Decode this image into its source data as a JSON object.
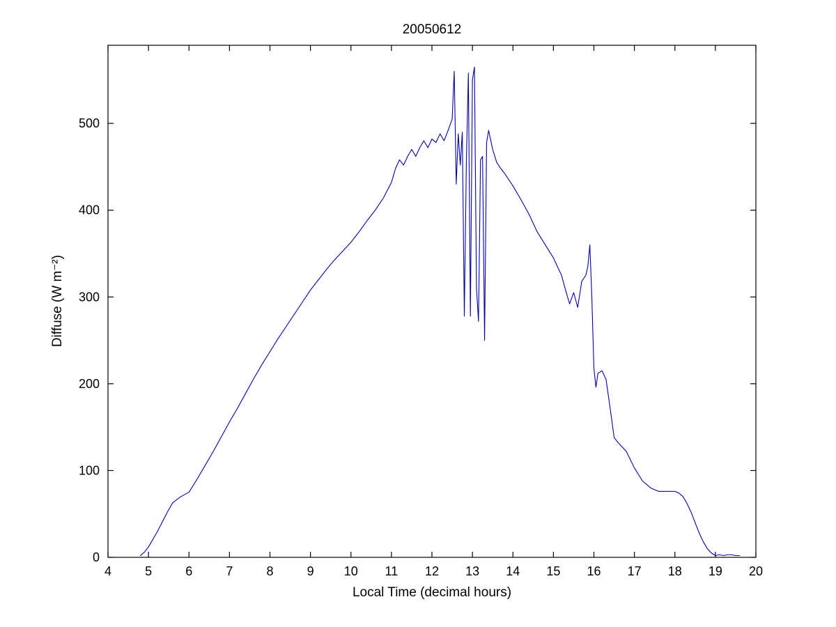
{
  "figure": {
    "title": "20050612",
    "xlabel": "Local Time (decimal hours)",
    "ylabel": "Diffuse (W m⁻²)"
  },
  "chart_data": {
    "type": "line",
    "title": "20050612",
    "xlabel": "Local Time (decimal hours)",
    "ylabel": "Diffuse (W m^-2)",
    "xlim": [
      4,
      20
    ],
    "ylim": [
      0,
      590
    ],
    "xticks": [
      4,
      5,
      6,
      7,
      8,
      9,
      10,
      11,
      12,
      13,
      14,
      15,
      16,
      17,
      18,
      19,
      20
    ],
    "yticks": [
      0,
      100,
      200,
      300,
      400,
      500
    ],
    "grid": false,
    "legend": "none",
    "line_color": "#0000AA",
    "axis_color": "#000000",
    "series": [
      {
        "name": "diffuse",
        "points": [
          [
            4.8,
            2
          ],
          [
            4.9,
            6
          ],
          [
            5.0,
            12
          ],
          [
            5.1,
            20
          ],
          [
            5.2,
            28
          ],
          [
            5.3,
            37
          ],
          [
            5.4,
            46
          ],
          [
            5.5,
            55
          ],
          [
            5.6,
            63
          ],
          [
            5.8,
            70
          ],
          [
            6.0,
            75
          ],
          [
            6.2,
            90
          ],
          [
            6.4,
            106
          ],
          [
            6.6,
            122
          ],
          [
            6.8,
            139
          ],
          [
            7.0,
            156
          ],
          [
            7.2,
            172
          ],
          [
            7.4,
            189
          ],
          [
            7.6,
            206
          ],
          [
            7.8,
            222
          ],
          [
            8.0,
            237
          ],
          [
            8.2,
            252
          ],
          [
            8.4,
            266
          ],
          [
            8.6,
            280
          ],
          [
            8.8,
            294
          ],
          [
            9.0,
            308
          ],
          [
            9.2,
            320
          ],
          [
            9.4,
            332
          ],
          [
            9.6,
            343
          ],
          [
            9.8,
            353
          ],
          [
            10.0,
            363
          ],
          [
            10.2,
            375
          ],
          [
            10.4,
            388
          ],
          [
            10.6,
            400
          ],
          [
            10.8,
            414
          ],
          [
            11.0,
            432
          ],
          [
            11.1,
            448
          ],
          [
            11.2,
            458
          ],
          [
            11.3,
            452
          ],
          [
            11.4,
            462
          ],
          [
            11.5,
            470
          ],
          [
            11.6,
            462
          ],
          [
            11.7,
            472
          ],
          [
            11.8,
            480
          ],
          [
            11.9,
            472
          ],
          [
            12.0,
            482
          ],
          [
            12.1,
            478
          ],
          [
            12.2,
            488
          ],
          [
            12.3,
            480
          ],
          [
            12.4,
            492
          ],
          [
            12.5,
            505
          ],
          [
            12.55,
            560
          ],
          [
            12.6,
            430
          ],
          [
            12.65,
            488
          ],
          [
            12.7,
            452
          ],
          [
            12.75,
            490
          ],
          [
            12.8,
            278
          ],
          [
            12.85,
            455
          ],
          [
            12.9,
            558
          ],
          [
            12.95,
            278
          ],
          [
            13.0,
            550
          ],
          [
            13.05,
            565
          ],
          [
            13.1,
            310
          ],
          [
            13.15,
            272
          ],
          [
            13.2,
            458
          ],
          [
            13.25,
            462
          ],
          [
            13.3,
            250
          ],
          [
            13.35,
            478
          ],
          [
            13.4,
            492
          ],
          [
            13.5,
            470
          ],
          [
            13.6,
            455
          ],
          [
            13.7,
            448
          ],
          [
            13.8,
            442
          ],
          [
            13.9,
            435
          ],
          [
            14.0,
            428
          ],
          [
            14.2,
            412
          ],
          [
            14.4,
            395
          ],
          [
            14.6,
            375
          ],
          [
            14.8,
            360
          ],
          [
            15.0,
            345
          ],
          [
            15.1,
            335
          ],
          [
            15.2,
            325
          ],
          [
            15.3,
            308
          ],
          [
            15.4,
            292
          ],
          [
            15.5,
            305
          ],
          [
            15.6,
            288
          ],
          [
            15.7,
            318
          ],
          [
            15.8,
            325
          ],
          [
            15.85,
            335
          ],
          [
            15.9,
            360
          ],
          [
            15.95,
            298
          ],
          [
            16.0,
            218
          ],
          [
            16.05,
            196
          ],
          [
            16.1,
            212
          ],
          [
            16.2,
            215
          ],
          [
            16.3,
            205
          ],
          [
            16.4,
            172
          ],
          [
            16.5,
            138
          ],
          [
            16.6,
            132
          ],
          [
            16.8,
            122
          ],
          [
            17.0,
            103
          ],
          [
            17.2,
            88
          ],
          [
            17.4,
            80
          ],
          [
            17.6,
            76
          ],
          [
            17.8,
            76
          ],
          [
            18.0,
            76
          ],
          [
            18.1,
            74
          ],
          [
            18.2,
            70
          ],
          [
            18.3,
            62
          ],
          [
            18.4,
            52
          ],
          [
            18.5,
            40
          ],
          [
            18.6,
            28
          ],
          [
            18.7,
            18
          ],
          [
            18.8,
            10
          ],
          [
            18.9,
            5
          ],
          [
            19.0,
            2
          ],
          [
            19.1,
            3
          ],
          [
            19.2,
            2
          ],
          [
            19.3,
            3
          ],
          [
            19.4,
            3
          ],
          [
            19.5,
            2
          ],
          [
            19.6,
            2
          ]
        ]
      }
    ]
  }
}
